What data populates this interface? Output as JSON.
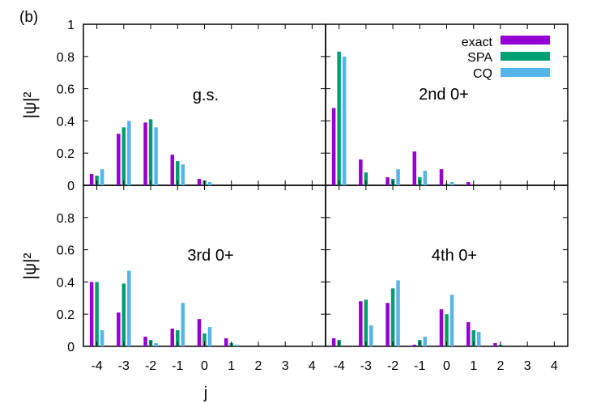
{
  "figure_label": "(b)",
  "legend": [
    {
      "label": "exact",
      "color": "#9400d3"
    },
    {
      "label": "SPA",
      "color": "#009e73"
    },
    {
      "label": "CQ",
      "color": "#56b4e9"
    }
  ],
  "chart_data": {
    "type": "bar",
    "layout": "2x2 panel grid, shared axes",
    "xlabel": "j",
    "ylabel": "|ψ|²",
    "x": [
      -4,
      -3,
      -2,
      -1,
      0,
      1,
      2,
      3,
      4
    ],
    "x_ticks": [
      "-4",
      "-3",
      "-2",
      "-1",
      "0",
      "1",
      "2",
      "3",
      "4"
    ],
    "ylim": [
      0,
      1
    ],
    "y_ticks": [
      "0",
      "0.2",
      "0.4",
      "0.6",
      "0.8",
      "1"
    ],
    "y_ticks_lower": [
      "0",
      "0.2",
      "0.4",
      "0.6",
      "0.8"
    ],
    "grid": false,
    "legend_position": "top-right of upper-right panel",
    "panels": [
      {
        "title": "g.s.",
        "series": [
          {
            "name": "exact",
            "values": [
              0.07,
              0.32,
              0.39,
              0.19,
              0.04,
              0.0,
              0.0,
              0.0,
              0.0
            ]
          },
          {
            "name": "SPA",
            "values": [
              0.06,
              0.36,
              0.41,
              0.15,
              0.03,
              0.0,
              0.0,
              0.0,
              0.0
            ]
          },
          {
            "name": "CQ",
            "values": [
              0.1,
              0.4,
              0.36,
              0.13,
              0.02,
              0.0,
              0.0,
              0.0,
              0.0
            ]
          }
        ]
      },
      {
        "title": "2nd 0+",
        "series": [
          {
            "name": "exact",
            "values": [
              0.48,
              0.16,
              0.05,
              0.21,
              0.1,
              0.02,
              0.0,
              0.0,
              0.0
            ]
          },
          {
            "name": "SPA",
            "values": [
              0.83,
              0.08,
              0.04,
              0.05,
              0.01,
              0.0,
              0.0,
              0.0,
              0.0
            ]
          },
          {
            "name": "CQ",
            "values": [
              0.8,
              0.0,
              0.1,
              0.09,
              0.02,
              0.0,
              0.0,
              0.0,
              0.0
            ]
          }
        ]
      },
      {
        "title": "3rd 0+",
        "series": [
          {
            "name": "exact",
            "values": [
              0.4,
              0.21,
              0.06,
              0.11,
              0.17,
              0.05,
              0.0,
              0.0,
              0.0
            ]
          },
          {
            "name": "SPA",
            "values": [
              0.4,
              0.39,
              0.04,
              0.1,
              0.08,
              0.02,
              0.0,
              0.0,
              0.0
            ]
          },
          {
            "name": "CQ",
            "values": [
              0.1,
              0.47,
              0.02,
              0.27,
              0.12,
              0.01,
              0.0,
              0.0,
              0.0
            ]
          }
        ]
      },
      {
        "title": "4th 0+",
        "series": [
          {
            "name": "exact",
            "values": [
              0.05,
              0.28,
              0.27,
              0.01,
              0.23,
              0.15,
              0.02,
              0.0,
              0.0
            ]
          },
          {
            "name": "SPA",
            "values": [
              0.04,
              0.29,
              0.36,
              0.04,
              0.2,
              0.1,
              0.01,
              0.0,
              0.0
            ]
          },
          {
            "name": "CQ",
            "values": [
              0.0,
              0.13,
              0.41,
              0.06,
              0.32,
              0.09,
              0.0,
              0.0,
              0.0
            ]
          }
        ]
      }
    ]
  }
}
